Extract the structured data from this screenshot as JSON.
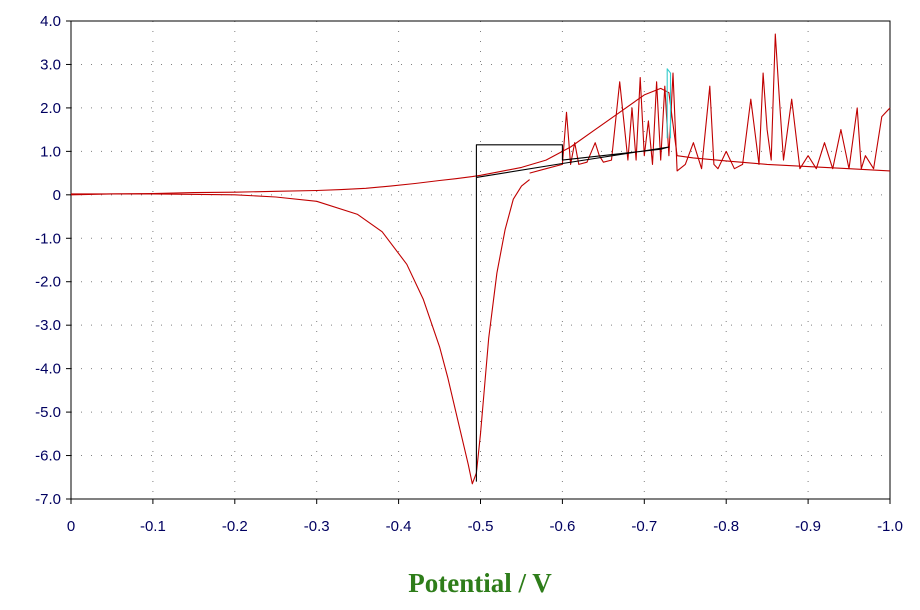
{
  "chart_data": {
    "type": "line",
    "title": "",
    "xlabel": "Potential / V",
    "ylabel": "",
    "xlim": [
      0,
      -1.0
    ],
    "ylim": [
      -7.0,
      4.0
    ],
    "x_reversed": true,
    "grid": true,
    "legend": "none",
    "x_ticks": [
      "0",
      "-0.1",
      "-0.2",
      "-0.3",
      "-0.4",
      "-0.5",
      "-0.6",
      "-0.7",
      "-0.8",
      "-0.9",
      "-1.0"
    ],
    "y_ticks": [
      "4.0",
      "3.0",
      "2.0",
      "1.0",
      "0",
      "-1.0",
      "-2.0",
      "-3.0",
      "-4.0",
      "-5.0",
      "-6.0",
      "-7.0"
    ],
    "colors": {
      "forward": "#c00000",
      "black": "#000000",
      "cyan": "#33cccc",
      "axis_text": "#000060",
      "grid": "#808080"
    },
    "series": [
      {
        "color": "#c00000",
        "x": [
          0,
          -0.05,
          -0.1,
          -0.15,
          -0.2,
          -0.25,
          -0.3,
          -0.33,
          -0.36,
          -0.39,
          -0.42,
          -0.45,
          -0.47,
          -0.49,
          -0.5,
          -0.52,
          -0.55,
          -0.58,
          -0.61,
          -0.64,
          -0.67,
          -0.7,
          -0.72,
          -0.73,
          -0.74,
          -0.76,
          -0.8,
          -0.85,
          -0.9,
          -0.95,
          -1.0
        ],
        "y": [
          0.0,
          0.02,
          0.03,
          0.05,
          0.06,
          0.08,
          0.1,
          0.12,
          0.15,
          0.2,
          0.26,
          0.33,
          0.37,
          0.42,
          0.45,
          0.52,
          0.63,
          0.8,
          1.1,
          1.5,
          1.9,
          2.3,
          2.45,
          2.35,
          0.9,
          0.85,
          0.78,
          0.7,
          0.65,
          0.6,
          0.55
        ]
      },
      {
        "color": "#c00000",
        "x": [
          0,
          -0.1,
          -0.2,
          -0.25,
          -0.3,
          -0.35,
          -0.38,
          -0.41,
          -0.43,
          -0.45,
          -0.46,
          -0.47,
          -0.48,
          -0.485,
          -0.49,
          -0.495,
          -0.5,
          -0.505,
          -0.51,
          -0.52,
          -0.53,
          -0.54,
          -0.55,
          -0.56
        ],
        "y": [
          0.02,
          0.02,
          0.0,
          -0.05,
          -0.15,
          -0.45,
          -0.85,
          -1.6,
          -2.4,
          -3.5,
          -4.2,
          -5.0,
          -5.8,
          -6.2,
          -6.65,
          -6.4,
          -5.5,
          -4.4,
          -3.3,
          -1.8,
          -0.8,
          -0.1,
          0.2,
          0.35
        ]
      },
      {
        "color": "#c00000",
        "x": [
          -0.56,
          -0.58,
          -0.6,
          -0.605,
          -0.61,
          -0.615,
          -0.62,
          -0.63,
          -0.64,
          -0.645,
          -0.65,
          -0.66,
          -0.67,
          -0.68,
          -0.685,
          -0.69,
          -0.695,
          -0.7,
          -0.705,
          -0.71,
          -0.715,
          -0.72,
          -0.725,
          -0.73,
          -0.735,
          -0.74,
          -0.75,
          -0.76,
          -0.77,
          -0.78,
          -0.785,
          -0.79,
          -0.8,
          -0.81,
          -0.82,
          -0.83,
          -0.84,
          -0.845,
          -0.85,
          -0.855,
          -0.86,
          -0.865,
          -0.87,
          -0.88,
          -0.89,
          -0.9,
          -0.91,
          -0.92,
          -0.93,
          -0.94,
          -0.95,
          -0.96,
          -0.965,
          -0.97,
          -0.98,
          -0.99,
          -1.0
        ],
        "y": [
          0.5,
          0.6,
          0.7,
          1.9,
          0.7,
          1.2,
          0.7,
          0.75,
          1.2,
          0.9,
          0.75,
          0.8,
          2.6,
          0.8,
          2.0,
          0.8,
          2.7,
          0.9,
          1.7,
          0.7,
          2.6,
          0.8,
          2.5,
          0.9,
          2.8,
          0.55,
          0.7,
          1.2,
          0.6,
          2.5,
          0.7,
          0.6,
          1.0,
          0.6,
          0.7,
          2.2,
          0.7,
          2.8,
          1.5,
          0.8,
          3.7,
          2.2,
          0.8,
          2.2,
          0.6,
          0.9,
          0.6,
          1.2,
          0.6,
          1.5,
          0.6,
          2.0,
          0.6,
          0.9,
          0.6,
          1.8,
          2.0
        ]
      },
      {
        "color": "#000000",
        "x": [
          -0.495,
          -0.495,
          -0.6,
          -0.6,
          -0.72,
          -0.73,
          -0.6,
          -0.495
        ],
        "y": [
          -6.6,
          1.15,
          1.15,
          0.8,
          1.05,
          1.1,
          0.72,
          0.4
        ]
      },
      {
        "color": "#33cccc",
        "x": [
          -0.728,
          -0.728,
          -0.732,
          -0.732
        ],
        "y": [
          1.3,
          2.9,
          2.8,
          1.3
        ]
      }
    ]
  }
}
